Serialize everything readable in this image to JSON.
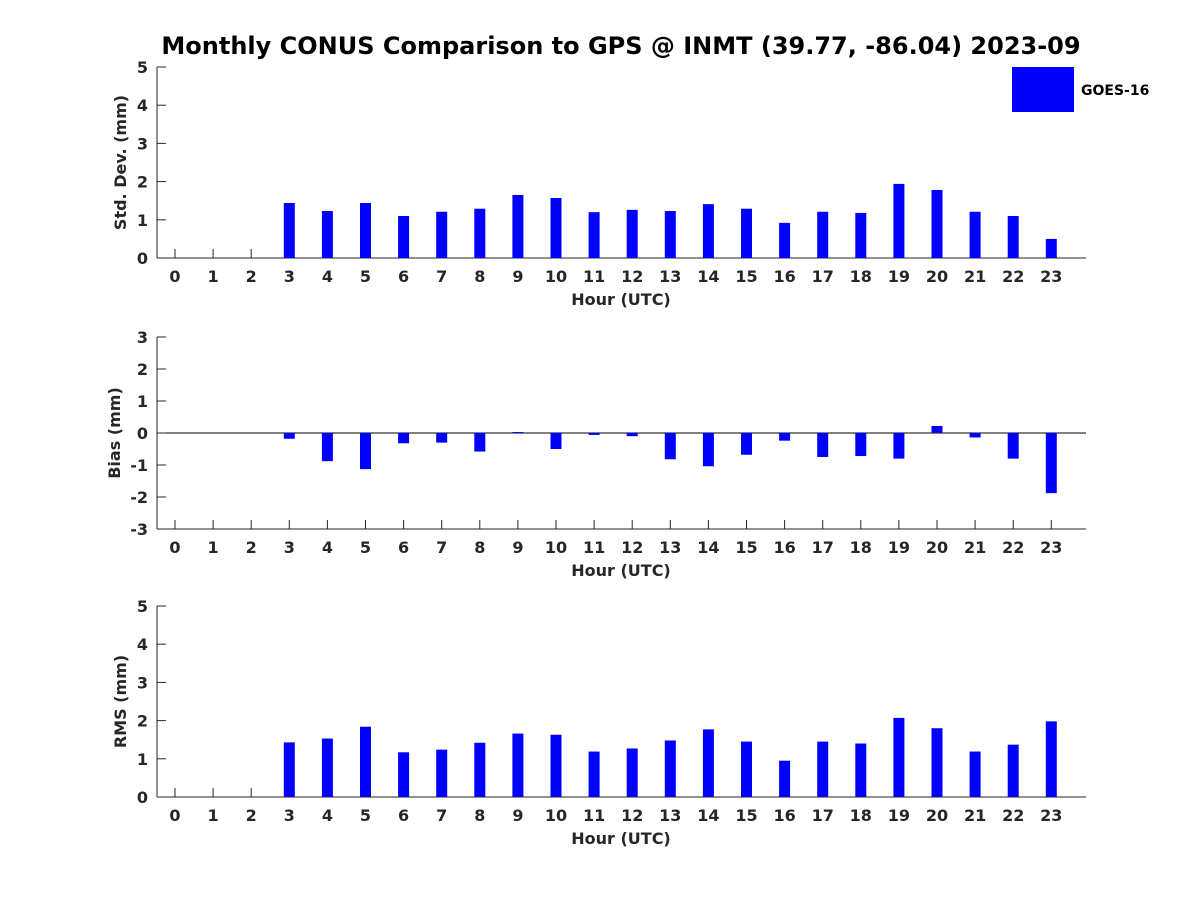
{
  "title": "Monthly CONUS Comparison to GPS @ INMT (39.77, -86.04) 2023-09",
  "legend": {
    "label": "GOES-16",
    "color": "#0000ff"
  },
  "chart_data": [
    {
      "type": "bar",
      "xlabel": "Hour (UTC)",
      "ylabel": "Std. Dev. (mm)",
      "ylim": [
        0,
        5
      ],
      "yticks": [
        "0",
        "1",
        "2",
        "3",
        "4",
        "5"
      ],
      "categories": [
        "0",
        "1",
        "2",
        "3",
        "4",
        "5",
        "6",
        "7",
        "8",
        "9",
        "10",
        "11",
        "12",
        "13",
        "14",
        "15",
        "16",
        "17",
        "18",
        "19",
        "20",
        "21",
        "22",
        "23"
      ],
      "series": [
        {
          "name": "GOES-16",
          "values": [
            null,
            null,
            null,
            1.44,
            1.23,
            1.44,
            1.1,
            1.21,
            1.29,
            1.65,
            1.57,
            1.2,
            1.26,
            1.23,
            1.41,
            1.29,
            0.92,
            1.21,
            1.18,
            1.94,
            1.78,
            1.21,
            1.1,
            0.5
          ]
        }
      ]
    },
    {
      "type": "bar",
      "xlabel": "Hour (UTC)",
      "ylabel": "Bias (mm)",
      "ylim": [
        -3,
        3
      ],
      "yticks": [
        "-3",
        "-2",
        "-1",
        "0",
        "1",
        "2",
        "3"
      ],
      "categories": [
        "0",
        "1",
        "2",
        "3",
        "4",
        "5",
        "6",
        "7",
        "8",
        "9",
        "10",
        "11",
        "12",
        "13",
        "14",
        "15",
        "16",
        "17",
        "18",
        "19",
        "20",
        "21",
        "22",
        "23"
      ],
      "series": [
        {
          "name": "GOES-16",
          "values": [
            null,
            null,
            null,
            -0.18,
            -0.88,
            -1.13,
            -0.32,
            -0.3,
            -0.58,
            0.03,
            -0.5,
            -0.06,
            -0.1,
            -0.82,
            -1.04,
            -0.68,
            -0.24,
            -0.75,
            -0.72,
            -0.8,
            0.22,
            -0.14,
            -0.8,
            -1.88
          ]
        }
      ]
    },
    {
      "type": "bar",
      "xlabel": "Hour (UTC)",
      "ylabel": "RMS (mm)",
      "ylim": [
        0,
        5
      ],
      "yticks": [
        "0",
        "1",
        "2",
        "3",
        "4",
        "5"
      ],
      "categories": [
        "0",
        "1",
        "2",
        "3",
        "4",
        "5",
        "6",
        "7",
        "8",
        "9",
        "10",
        "11",
        "12",
        "13",
        "14",
        "15",
        "16",
        "17",
        "18",
        "19",
        "20",
        "21",
        "22",
        "23"
      ],
      "series": [
        {
          "name": "GOES-16",
          "values": [
            null,
            null,
            null,
            1.43,
            1.53,
            1.84,
            1.17,
            1.24,
            1.42,
            1.66,
            1.63,
            1.19,
            1.27,
            1.48,
            1.77,
            1.45,
            0.95,
            1.45,
            1.4,
            2.07,
            1.8,
            1.19,
            1.37,
            1.98
          ]
        }
      ]
    }
  ]
}
